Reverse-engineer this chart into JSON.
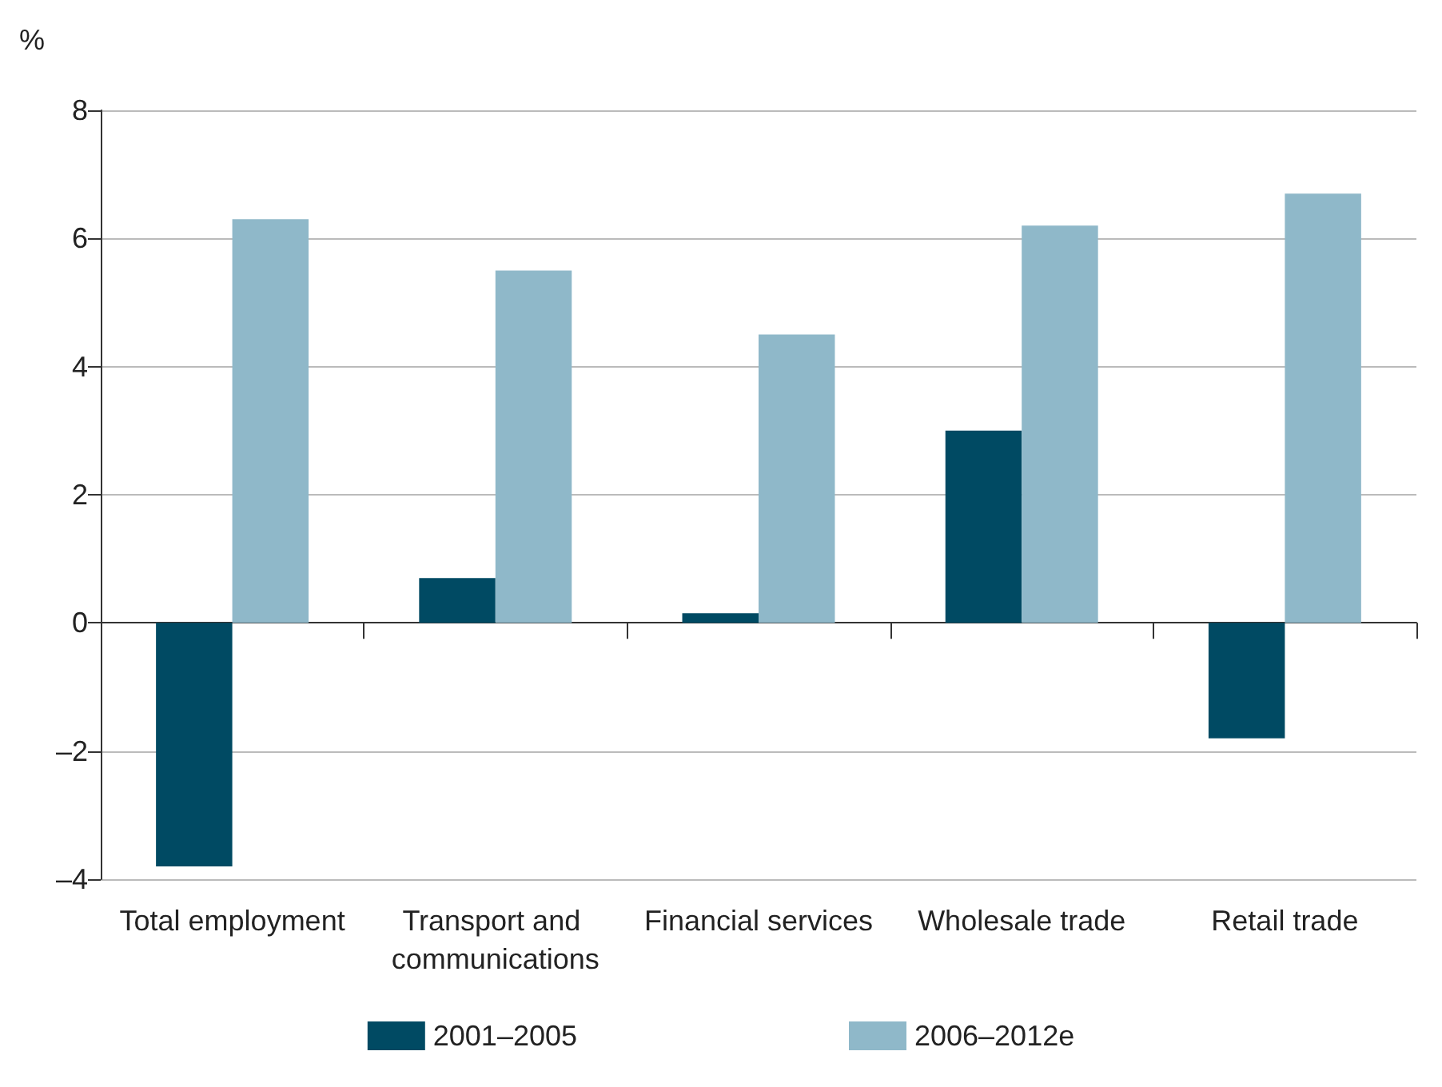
{
  "chart_data": {
    "type": "bar",
    "ylabel": "%",
    "categories": [
      "Total employment",
      "Transport and communications",
      "Financial services",
      "Wholesale trade",
      "Retail trade"
    ],
    "series": [
      {
        "name": "2001–2005",
        "color": "#004a63",
        "values": [
          -3.8,
          0.7,
          0.15,
          3.0,
          -1.8
        ]
      },
      {
        "name": "2006–2012e",
        "color": "#8fb8c9",
        "values": [
          6.3,
          5.5,
          4.5,
          6.2,
          6.7
        ]
      }
    ],
    "ylim": [
      -4,
      8
    ],
    "yticks": [
      {
        "value": -4,
        "label": "–4"
      },
      {
        "value": -2,
        "label": "–2"
      },
      0,
      2,
      4,
      6,
      8
    ],
    "grid": "y",
    "legend": "bottom"
  }
}
